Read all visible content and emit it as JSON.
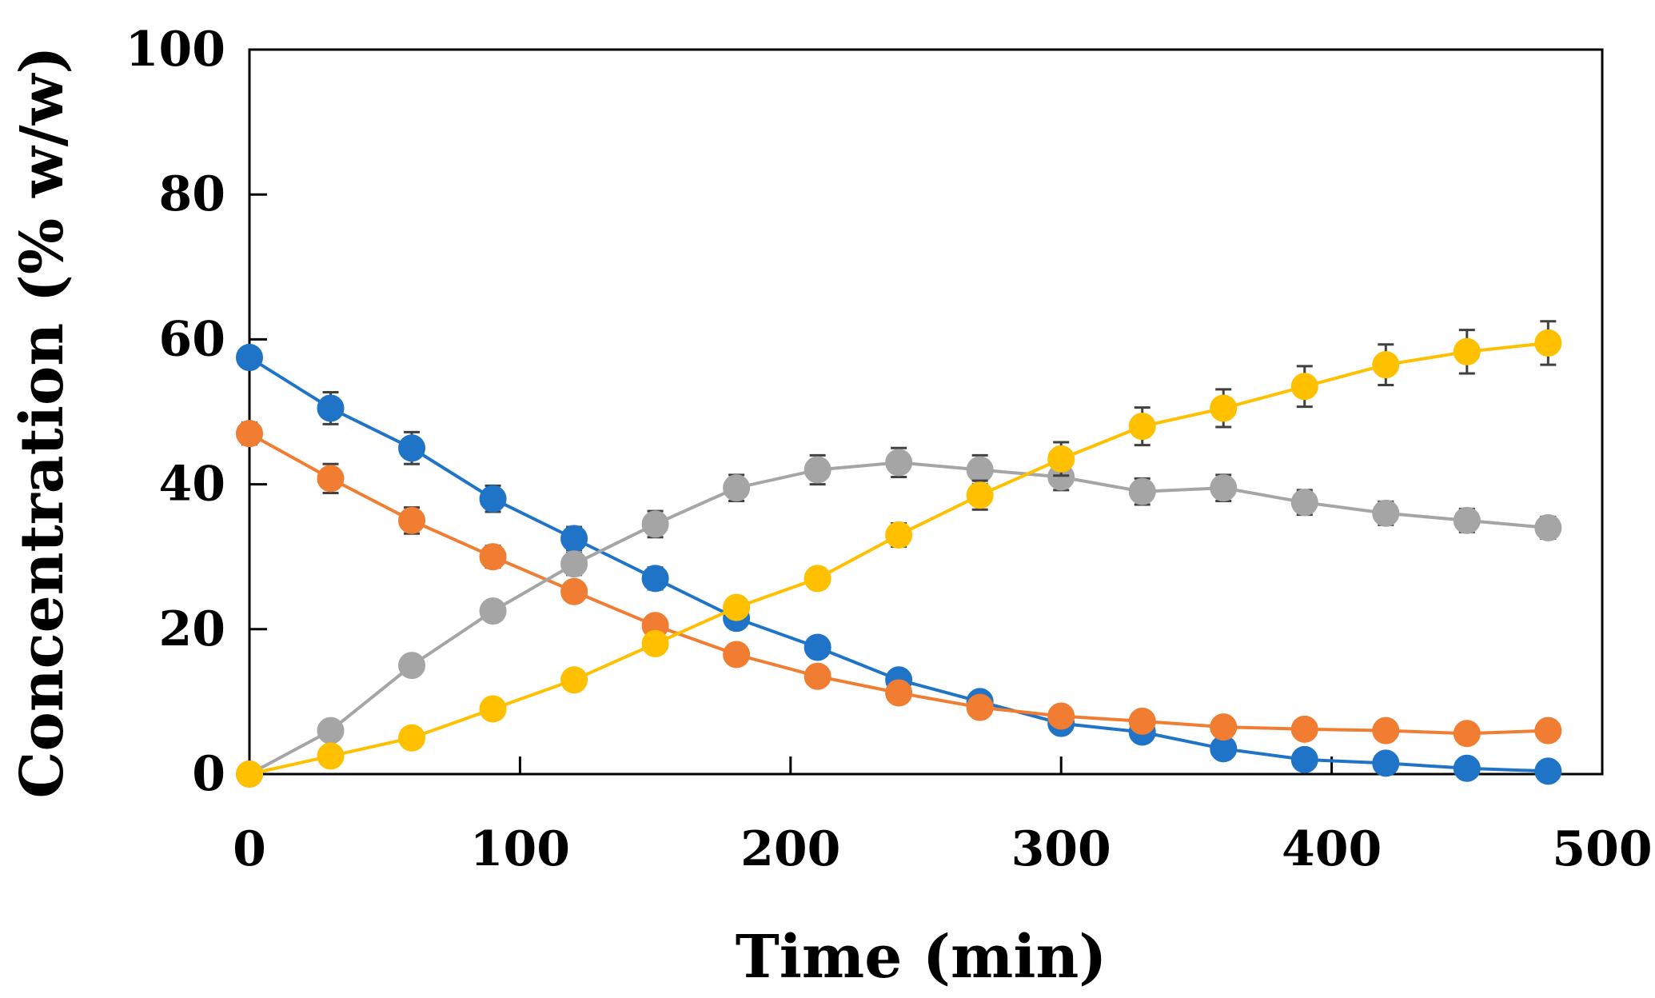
{
  "chart_data": {
    "type": "line",
    "title": "",
    "xlabel": "Time (min)",
    "ylabel": "Concentration (% w/w)",
    "xlim": [
      0,
      500
    ],
    "ylim": [
      0,
      100
    ],
    "xticks": [
      "0",
      "100",
      "200",
      "300",
      "400",
      "500"
    ],
    "yticks": [
      "0",
      "20",
      "40",
      "60",
      "80",
      "100"
    ],
    "grid": false,
    "legend": "none",
    "x": [
      0,
      30,
      60,
      90,
      120,
      150,
      180,
      210,
      240,
      270,
      300,
      330,
      360,
      390,
      420,
      450,
      480
    ],
    "series": [
      {
        "color": "#1f74c8",
        "values": [
          57.5,
          50.5,
          45,
          38,
          32.5,
          27,
          21.5,
          17.5,
          13,
          10,
          7,
          5.8,
          3.5,
          2,
          1.5,
          0.8,
          0.4
        ],
        "errors": [
          1.2,
          2.2,
          2.2,
          1.8,
          1.6,
          1.5,
          1.2,
          1.2,
          1.2,
          1.0,
          0.8,
          0.8,
          0.6,
          0.5,
          0.5,
          0.3,
          0.3
        ]
      },
      {
        "color": "#f07d32",
        "values": [
          47,
          40.8,
          35,
          30,
          25.2,
          20.5,
          16.5,
          13.5,
          11.2,
          9.2,
          8,
          7.3,
          6.5,
          6.2,
          6,
          5.6,
          6
        ],
        "errors": [
          1.5,
          2.0,
          1.8,
          1.5,
          1.2,
          1.2,
          1.0,
          0.9,
          0.8,
          0.8,
          0.6,
          0.6,
          0.6,
          0.6,
          0.5,
          0.5,
          0.5
        ]
      },
      {
        "color": "#a5a5a5",
        "values": [
          0,
          6,
          15,
          22.5,
          29,
          34.5,
          39.5,
          42,
          43,
          42,
          41,
          39,
          39.5,
          37.5,
          36,
          35,
          34
        ],
        "errors": [
          0.3,
          0.6,
          0.9,
          1.2,
          1.5,
          1.8,
          1.8,
          2.0,
          2.0,
          2.0,
          1.8,
          1.8,
          1.8,
          1.7,
          1.6,
          1.6,
          1.5
        ]
      },
      {
        "color": "#ffc000",
        "values": [
          0,
          2.5,
          5,
          9,
          13,
          18,
          23,
          27,
          33,
          38.5,
          43.5,
          48,
          50.5,
          53.5,
          56.5,
          58.3,
          59.5
        ],
        "errors": [
          0.3,
          0.4,
          0.6,
          0.8,
          0.9,
          1.0,
          1.2,
          1.4,
          1.6,
          2.0,
          2.3,
          2.6,
          2.6,
          2.8,
          2.8,
          3.0,
          3.0
        ]
      }
    ]
  }
}
